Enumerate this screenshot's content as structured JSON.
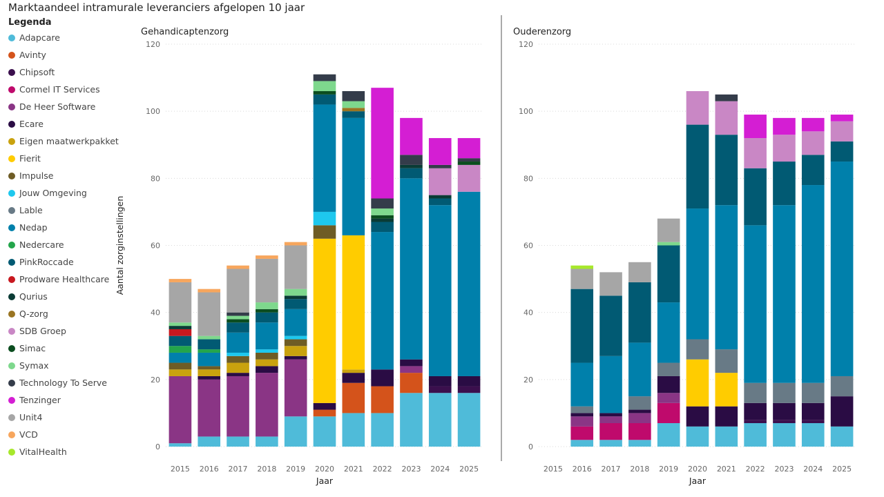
{
  "title": "Marktaandeel intramurale leveranciers afgelopen 10 jaar",
  "legend_title": "Legenda",
  "colors": {
    "Adapcare": "#4fbbd9",
    "Avinty": "#d4531b",
    "Chipsoft": "#3b0f4d",
    "Cormel IT Services": "#bf0a6c",
    "De Heer Software": "#8a3585",
    "Ecare": "#2a0c44",
    "Eigen maatwerkpakket": "#c9a20e",
    "Fierit": "#ffcc00",
    "Impulse": "#6e5c25",
    "Jouw Omgeving": "#1ec8ee",
    "Lable": "#687a86",
    "Nedap": "#0080ab",
    "Nedercare": "#23a54b",
    "PinkRoccade": "#015a73",
    "Prodware Healthcare": "#c8181f",
    "Qurius": "#0a3b35",
    "Q-zorg": "#9a7522",
    "SDB Groep": "#c987c5",
    "Simac": "#0b4d1f",
    "Symax": "#7ed88d",
    "Technology To Serve": "#343c4a",
    "Tenzinger": "#d41ed3",
    "Unit4": "#a6a6a6",
    "VCD": "#f7a65d",
    "VitalHealth": "#a7e82b"
  },
  "chart_data": [
    {
      "type": "bar",
      "stacked": true,
      "title": "Gehandicaptenzorg",
      "xlabel": "Jaar",
      "ylabel": "Aantal zorginstellingen",
      "ylim": [
        0,
        120
      ],
      "yticks": [
        0,
        20,
        40,
        60,
        80,
        100,
        120
      ],
      "categories": [
        "2015",
        "2016",
        "2017",
        "2018",
        "2019",
        "2020",
        "2021",
        "2022",
        "2023",
        "2024",
        "2025"
      ],
      "series": [
        {
          "name": "Adapcare",
          "values": [
            1,
            3,
            3,
            3,
            9,
            9,
            10,
            10,
            16,
            16,
            16
          ]
        },
        {
          "name": "Avinty",
          "values": [
            0,
            0,
            0,
            0,
            0,
            2,
            9,
            8,
            6,
            0,
            0
          ]
        },
        {
          "name": "Chipsoft",
          "values": [
            0,
            0,
            0,
            0,
            0,
            0,
            0,
            0,
            0,
            2,
            2
          ]
        },
        {
          "name": "De Heer Software",
          "values": [
            20,
            17,
            18,
            19,
            17,
            0,
            0,
            0,
            2,
            0,
            0
          ]
        },
        {
          "name": "Ecare",
          "values": [
            0,
            1,
            1,
            2,
            1,
            2,
            3,
            5,
            2,
            3,
            3
          ]
        },
        {
          "name": "Eigen maatwerkpakket",
          "values": [
            2,
            2,
            3,
            2,
            3,
            0,
            1,
            0,
            0,
            0,
            0
          ]
        },
        {
          "name": "Fierit",
          "values": [
            0,
            0,
            0,
            0,
            0,
            49,
            40,
            0,
            0,
            0,
            0
          ]
        },
        {
          "name": "Impulse",
          "values": [
            2,
            1,
            2,
            2,
            2,
            4,
            0,
            0,
            0,
            0,
            0
          ]
        },
        {
          "name": "Jouw Omgeving",
          "values": [
            0,
            0,
            1,
            1,
            1,
            4,
            0,
            0,
            0,
            0,
            0
          ]
        },
        {
          "name": "Nedap",
          "values": [
            3,
            4,
            6,
            8,
            8,
            32,
            35,
            41,
            54,
            51,
            55
          ]
        },
        {
          "name": "Nedercare",
          "values": [
            2,
            1,
            0,
            0,
            0,
            0,
            0,
            0,
            0,
            0,
            0
          ]
        },
        {
          "name": "PinkRoccade",
          "values": [
            3,
            3,
            3,
            3,
            3,
            3,
            2,
            3,
            3,
            2,
            0
          ]
        },
        {
          "name": "Prodware Healthcare",
          "values": [
            2,
            0,
            0,
            0,
            0,
            0,
            0,
            0,
            0,
            0,
            0
          ]
        },
        {
          "name": "Qurius",
          "values": [
            1,
            0,
            0,
            0,
            1,
            0,
            0,
            1,
            1,
            1,
            0
          ]
        },
        {
          "name": "Q-zorg",
          "values": [
            0,
            0,
            0,
            0,
            0,
            0,
            1,
            0,
            0,
            0,
            0
          ]
        },
        {
          "name": "SDB Groep",
          "values": [
            0,
            0,
            0,
            0,
            0,
            0,
            0,
            0,
            0,
            8,
            8
          ]
        },
        {
          "name": "Simac",
          "values": [
            0,
            0,
            1,
            1,
            0,
            1,
            0,
            1,
            0,
            0,
            1
          ]
        },
        {
          "name": "Symax",
          "values": [
            1,
            1,
            1,
            2,
            2,
            3,
            2,
            2,
            0,
            0,
            0
          ]
        },
        {
          "name": "Technology To Serve",
          "values": [
            0,
            0,
            1,
            0,
            0,
            2,
            3,
            3,
            3,
            1,
            1
          ]
        },
        {
          "name": "Tenzinger",
          "values": [
            0,
            0,
            0,
            0,
            0,
            0,
            0,
            33,
            11,
            8,
            6
          ]
        },
        {
          "name": "Unit4",
          "values": [
            12,
            13,
            13,
            13,
            13,
            0,
            0,
            0,
            0,
            0,
            0
          ]
        },
        {
          "name": "VCD",
          "values": [
            1,
            1,
            1,
            1,
            1,
            0,
            0,
            0,
            0,
            0,
            0
          ]
        }
      ]
    },
    {
      "type": "bar",
      "stacked": true,
      "title": "Ouderenzorg",
      "xlabel": "Jaar",
      "ylabel": "",
      "ylim": [
        0,
        120
      ],
      "yticks": [
        0,
        20,
        40,
        60,
        80,
        100,
        120
      ],
      "categories": [
        "2015",
        "2016",
        "2017",
        "2018",
        "2019",
        "2020",
        "2021",
        "2022",
        "2023",
        "2024",
        "2025"
      ],
      "series": [
        {
          "name": "Adapcare",
          "values": [
            0,
            2,
            2,
            2,
            7,
            6,
            6,
            7,
            7,
            7,
            6
          ]
        },
        {
          "name": "Cormel IT Services",
          "values": [
            0,
            4,
            5,
            5,
            6,
            0,
            0,
            0,
            0,
            0,
            0
          ]
        },
        {
          "name": "Chipsoft",
          "values": [
            0,
            0,
            0,
            0,
            0,
            0,
            0,
            1,
            1,
            1,
            0
          ]
        },
        {
          "name": "De Heer Software",
          "values": [
            0,
            3,
            2,
            3,
            3,
            0,
            0,
            0,
            0,
            0,
            0
          ]
        },
        {
          "name": "Ecare",
          "values": [
            0,
            1,
            1,
            1,
            5,
            6,
            6,
            5,
            5,
            5,
            9
          ]
        },
        {
          "name": "Fierit",
          "values": [
            0,
            0,
            0,
            0,
            0,
            14,
            10,
            0,
            0,
            0,
            0
          ]
        },
        {
          "name": "Lable",
          "values": [
            0,
            2,
            0,
            4,
            4,
            6,
            7,
            6,
            6,
            6,
            6
          ]
        },
        {
          "name": "Nedap",
          "values": [
            0,
            13,
            17,
            16,
            18,
            39,
            43,
            47,
            53,
            59,
            64
          ]
        },
        {
          "name": "PinkRoccade",
          "values": [
            0,
            22,
            18,
            18,
            17,
            25,
            21,
            17,
            13,
            9,
            6
          ]
        },
        {
          "name": "SDB Groep",
          "values": [
            0,
            0,
            0,
            0,
            0,
            10,
            10,
            9,
            8,
            7,
            6
          ]
        },
        {
          "name": "Symax",
          "values": [
            0,
            0,
            0,
            0,
            1,
            0,
            0,
            0,
            0,
            0,
            0
          ]
        },
        {
          "name": "Technology To Serve",
          "values": [
            0,
            0,
            0,
            0,
            0,
            0,
            2,
            0,
            0,
            0,
            0
          ]
        },
        {
          "name": "Tenzinger",
          "values": [
            0,
            0,
            0,
            0,
            0,
            0,
            0,
            7,
            5,
            4,
            2
          ]
        },
        {
          "name": "Unit4",
          "values": [
            0,
            6,
            7,
            6,
            7,
            0,
            0,
            0,
            0,
            0,
            0
          ]
        },
        {
          "name": "VCD",
          "values": [
            0,
            0,
            0,
            0,
            0,
            0,
            0,
            0,
            0,
            0,
            0
          ]
        },
        {
          "name": "VitalHealth",
          "values": [
            0,
            1,
            0,
            0,
            0,
            0,
            0,
            0,
            0,
            0,
            0
          ]
        }
      ]
    }
  ]
}
